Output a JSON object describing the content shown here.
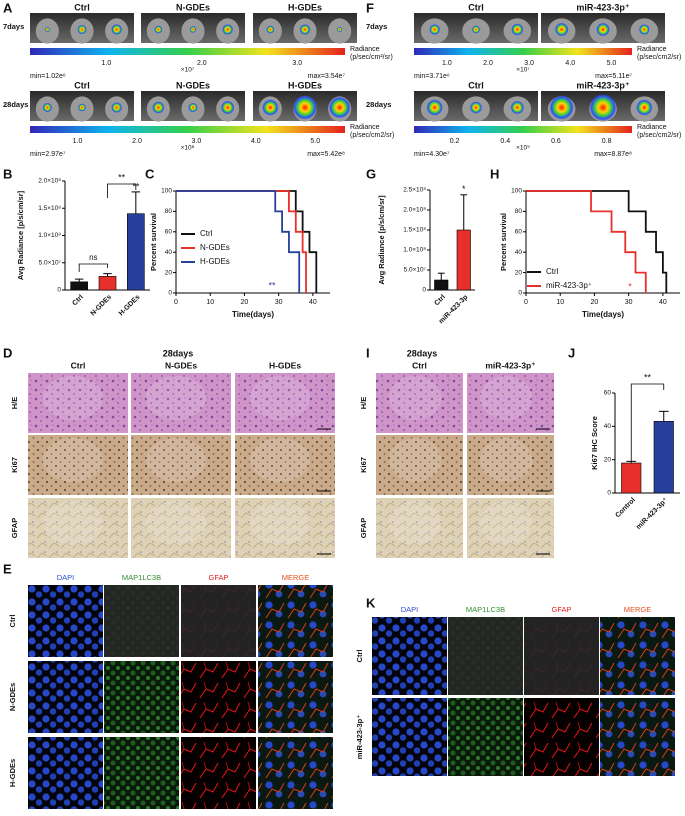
{
  "figure": {
    "A": {
      "letter": "A",
      "rows": [
        {
          "label": "7days",
          "columns": [
            "Ctrl",
            "N-GDEs",
            "H-GDEs"
          ],
          "scale_ticks": [
            "1.0",
            "2.0",
            "3.0"
          ],
          "scale_exponent": "×10⁷",
          "scale_title": "Radiance",
          "scale_unit": "(p/sec/cm²/sr)",
          "min": "min=1.02e⁶",
          "max": "max=3.54e⁷"
        },
        {
          "label": "28days",
          "columns": [
            "Ctrl",
            "N-GDEs",
            "H-GDEs"
          ],
          "scale_ticks": [
            "1.0",
            "2.0",
            "3.0",
            "4.0",
            "5.0"
          ],
          "scale_exponent": "×10⁸",
          "scale_title": "Radiance",
          "scale_unit": "(p/sec/cm2/sr)",
          "min": "min=2.97e⁷",
          "max": "max=5.42e⁸"
        }
      ]
    },
    "F": {
      "letter": "F",
      "rows": [
        {
          "label": "7days",
          "columns": [
            "Ctrl",
            "miR-423-3p⁺"
          ],
          "scale_ticks": [
            "1.0",
            "2.0",
            "3.0",
            "4.0",
            "5.0"
          ],
          "scale_exponent": "×10⁷",
          "scale_title": "Radiance",
          "scale_unit": "(p/sec/cm2/sr)",
          "min": "min=3.71e⁶",
          "max": "max=5.11e⁷"
        },
        {
          "label": "28days",
          "columns": [
            "Ctrl",
            "miR-423-3p⁺"
          ],
          "scale_ticks": [
            "0.2",
            "0.4",
            "0.6",
            "0.8"
          ],
          "scale_exponent": "×10⁹",
          "scale_title": "Radiance",
          "scale_unit": "(p/sec/cm2/sr)",
          "min": "min=4.30e⁷",
          "max": "max=8.87e⁸"
        }
      ]
    },
    "D": {
      "letter": "D",
      "time": "28days",
      "columns": [
        "Ctrl",
        "N-GDEs",
        "H-GDEs"
      ],
      "rows": [
        "H/E",
        "Ki67",
        "GFAP"
      ]
    },
    "I": {
      "letter": "I",
      "time": "28days",
      "columns": [
        "Ctrl",
        "miR-423-3p⁺"
      ],
      "rows": [
        "H/E",
        "Ki67",
        "GFAP"
      ]
    },
    "E": {
      "letter": "E",
      "columns": [
        "DAPI",
        "MAP1LC3B",
        "GFAP",
        "MERGE"
      ],
      "rows": [
        "Ctrl",
        "N-GDEs",
        "H-GDEs"
      ]
    },
    "K": {
      "letter": "K",
      "columns": [
        "DAPI",
        "MAP1LC3B",
        "GFAP",
        "MERGE"
      ],
      "rows": [
        "Ctrl",
        "miR-423-3p⁺"
      ]
    }
  },
  "chart_data": [
    {
      "type": "bar",
      "panel": "B",
      "ylabel": "Avg Radiance [p/s/cm/sr]",
      "categories": [
        "Ctrl",
        "N-GDEs",
        "H-GDEs"
      ],
      "values": [
        15000000,
        25000000,
        140000000
      ],
      "errors": [
        5000000,
        5000000,
        40000000
      ],
      "colors": [
        "#111111",
        "#e8302a",
        "#27409c"
      ],
      "ylim": [
        0,
        200000000
      ],
      "yticks": [
        0,
        {
          "value": 50000000,
          "label": "5.0×10⁷"
        },
        {
          "value": 100000000,
          "label": "1.0×10⁸"
        },
        {
          "value": 150000000,
          "label": "1.5×10⁸"
        },
        {
          "value": 200000000,
          "label": "2.0×10⁸"
        }
      ],
      "annotations": [
        "**",
        "ns",
        "**"
      ]
    },
    {
      "type": "line",
      "step": true,
      "panel": "C",
      "xlabel": "Time(days)",
      "ylabel": "Percent survival",
      "xlim": [
        0,
        45
      ],
      "xticks": [
        0,
        10,
        20,
        30,
        40
      ],
      "ylim": [
        0,
        100
      ],
      "yticks": [
        0,
        20,
        40,
        60,
        80,
        100
      ],
      "legend": "lower-left",
      "annotations": [
        {
          "text": "**",
          "color": "#27409c"
        }
      ],
      "series": [
        {
          "name": "Ctrl",
          "color": "#111111",
          "x": [
            0,
            35,
            35,
            37,
            37,
            39,
            39,
            41,
            41
          ],
          "values": [
            100,
            100,
            80,
            80,
            60,
            60,
            40,
            40,
            0
          ]
        },
        {
          "name": "N-GDEs",
          "color": "#e8302a",
          "x": [
            0,
            33,
            33,
            35,
            35,
            37,
            37,
            38,
            38
          ],
          "values": [
            100,
            100,
            80,
            80,
            60,
            60,
            40,
            40,
            0
          ]
        },
        {
          "name": "H-GDEs",
          "color": "#27409c",
          "x": [
            0,
            29,
            29,
            31,
            31,
            33,
            33,
            36,
            36
          ],
          "values": [
            100,
            100,
            80,
            80,
            60,
            60,
            40,
            40,
            0
          ]
        }
      ]
    },
    {
      "type": "bar",
      "panel": "G",
      "ylabel": "Avg Radiance [p/s/cm/sr]",
      "categories": [
        "Ctrl",
        "miR-423-3p"
      ],
      "values": [
        25000000,
        150000000
      ],
      "errors": [
        17000000,
        88000000
      ],
      "colors": [
        "#111111",
        "#e8302a"
      ],
      "ylim": [
        0,
        250000000
      ],
      "yticks": [
        0,
        {
          "value": 50000000,
          "label": "5.0×10⁷"
        },
        {
          "value": 100000000,
          "label": "1.0×10⁸"
        },
        {
          "value": 150000000,
          "label": "1.5×10⁸"
        },
        {
          "value": 200000000,
          "label": "2.0×10⁸"
        },
        {
          "value": 250000000,
          "label": "2.5×10⁸"
        }
      ],
      "annotations": [
        "*"
      ]
    },
    {
      "type": "line",
      "step": true,
      "panel": "H",
      "xlabel": "Time(days)",
      "ylabel": "Percent survival",
      "xlim": [
        0,
        45
      ],
      "xticks": [
        0,
        10,
        20,
        30,
        40
      ],
      "ylim": [
        0,
        100
      ],
      "yticks": [
        0,
        20,
        40,
        60,
        80,
        100
      ],
      "legend": "lower-left",
      "annotations": [
        {
          "text": "*",
          "color": "#e8302a"
        }
      ],
      "series": [
        {
          "name": "Ctrl",
          "color": "#111111",
          "x": [
            0,
            30,
            30,
            35,
            35,
            38,
            38,
            40,
            40,
            41,
            41
          ],
          "values": [
            100,
            100,
            80,
            80,
            60,
            60,
            40,
            40,
            20,
            20,
            0
          ]
        },
        {
          "name": "miR-423-3p⁺",
          "color": "#e8302a",
          "x": [
            0,
            19,
            19,
            25,
            25,
            29,
            29,
            32,
            32,
            35,
            35
          ],
          "values": [
            100,
            100,
            80,
            80,
            60,
            60,
            40,
            40,
            20,
            20,
            0
          ]
        }
      ]
    },
    {
      "type": "bar",
      "panel": "J",
      "ylabel": "Ki67 IHC Score",
      "categories": [
        "Control",
        "miR-423-3p⁺"
      ],
      "values": [
        18,
        43
      ],
      "errors": [
        1,
        6
      ],
      "colors": [
        "#e8302a",
        "#27409c"
      ],
      "ylim": [
        0,
        60
      ],
      "yticks": [
        0,
        20,
        40,
        60
      ],
      "annotations": [
        "**"
      ]
    }
  ]
}
